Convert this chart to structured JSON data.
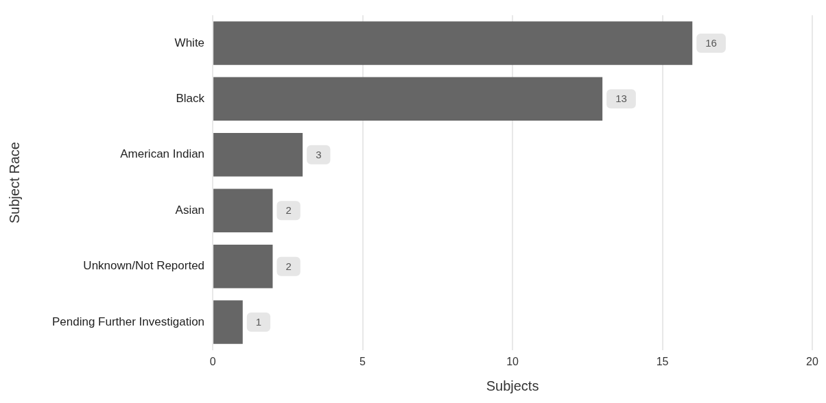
{
  "chart_data": {
    "type": "bar",
    "orientation": "horizontal",
    "xlabel": "Subjects",
    "ylabel": "Subject Race",
    "categories": [
      "White",
      "Black",
      "American Indian",
      "Asian",
      "Unknown/Not Reported",
      "Pending Further Investigation"
    ],
    "values": [
      16,
      13,
      3,
      2,
      2,
      1
    ],
    "color": "#666666",
    "xlim": [
      0,
      20
    ],
    "xticks": [
      0,
      5,
      10,
      15,
      20
    ],
    "grid": "x",
    "legend": false,
    "data_labels": true
  }
}
